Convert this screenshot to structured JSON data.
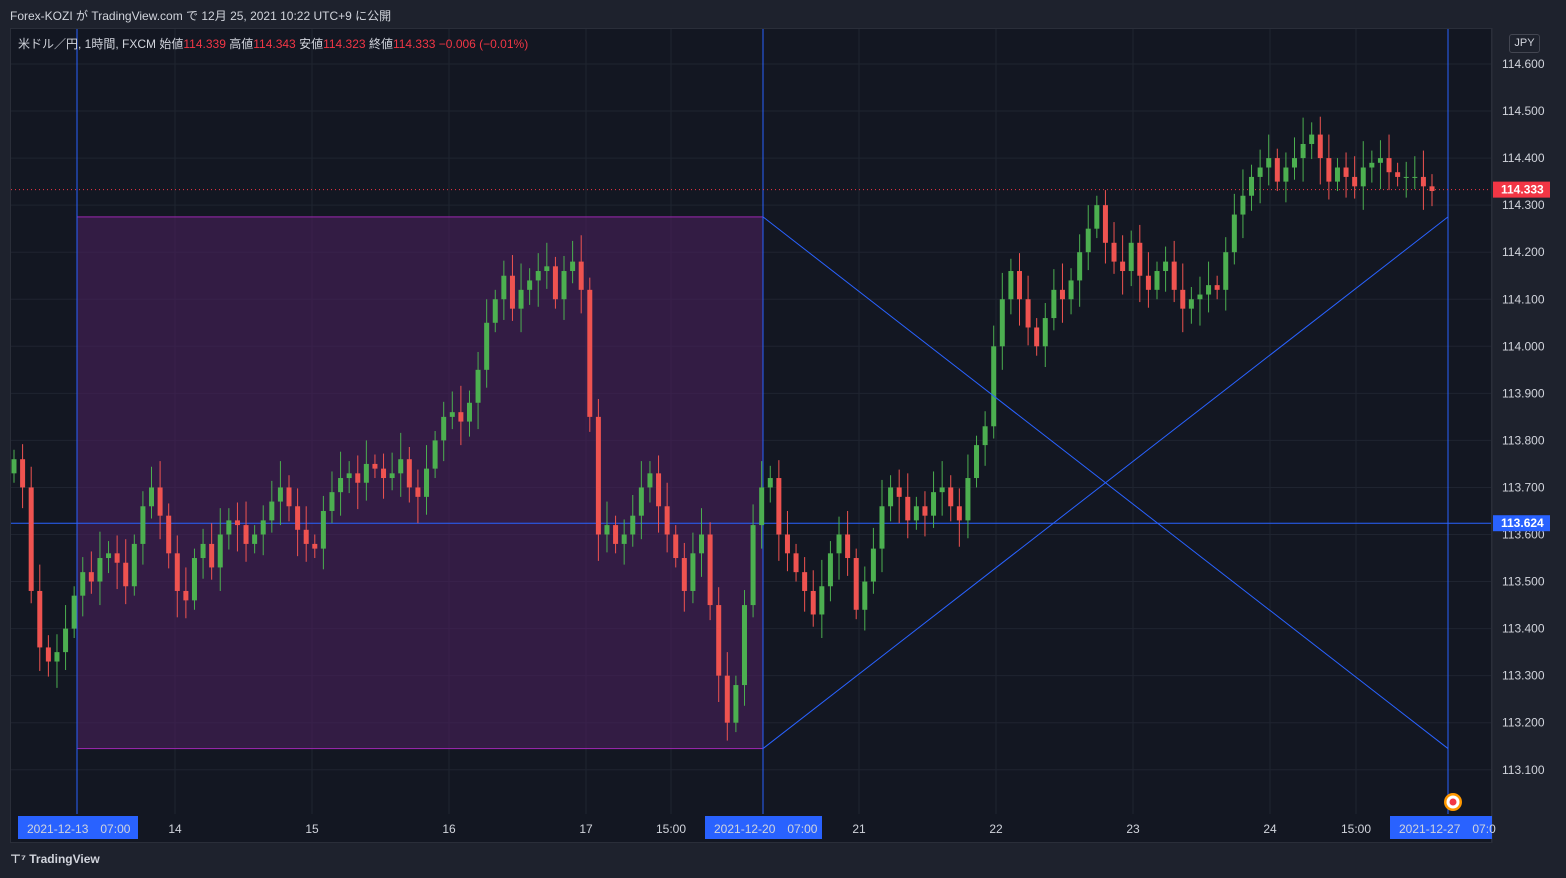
{
  "header": {
    "published_text": "Forex-KOZI が TradingView.com で 12月 25, 2021 10:22 UTC+9 に公開"
  },
  "legend": {
    "symbol": "米ドル／円, 1時間, FXCM",
    "open_label": "始値",
    "open": "114.339",
    "high_label": "高値",
    "high": "114.343",
    "low_label": "安値",
    "low": "114.323",
    "close_label": "終値",
    "close": "114.333",
    "change": "−0.006 (−0.01%)"
  },
  "currency_button": "JPY",
  "footer": {
    "brand": "TradingView"
  },
  "colors": {
    "up": "#26a69a",
    "up_body": "#4caf50",
    "down": "#ef5350",
    "line": "#2962ff",
    "box_fill": "#4a1f5c",
    "box_border": "#9c27b0",
    "last_price": "#f23645",
    "line_price": "#2962ff"
  },
  "chart_data": {
    "type": "candlestick",
    "y_axis": {
      "min": 113.02,
      "max": 114.66,
      "ticks": [
        "114.600",
        "114.500",
        "114.400",
        "114.300",
        "114.200",
        "114.100",
        "114.000",
        "113.900",
        "113.800",
        "113.700",
        "113.600",
        "113.500",
        "113.400",
        "113.300",
        "113.200",
        "113.100"
      ]
    },
    "x_axis": {
      "labels": [
        "14",
        "15",
        "16",
        "17",
        "15:00",
        "21",
        "22",
        "23",
        "24",
        "15:00"
      ],
      "highlighted_labels": [
        "2021-12-13　07:00",
        "2021-12-20　07:00",
        "2021-12-27　07:0"
      ]
    },
    "last_price_label": "114.333",
    "horizontal_line_label": "113.624",
    "horizontal_line_price": 113.624,
    "box": {
      "top_price": 114.275,
      "bottom_price": 113.145,
      "start_label": "2021-12-13　07:00",
      "end_label": "2021-12-20　07:00"
    },
    "cross_lines": [
      {
        "from_price": 114.275,
        "to_price": 113.145
      },
      {
        "from_price": 113.145,
        "to_price": 114.275
      }
    ],
    "closes": [
      113.76,
      113.7,
      113.48,
      113.36,
      113.33,
      113.35,
      113.4,
      113.47,
      113.52,
      113.5,
      113.55,
      113.56,
      113.54,
      113.49,
      113.58,
      113.66,
      113.7,
      113.64,
      113.56,
      113.48,
      113.46,
      113.55,
      113.58,
      113.53,
      113.6,
      113.63,
      113.62,
      113.58,
      113.6,
      113.63,
      113.67,
      113.7,
      113.66,
      113.61,
      113.58,
      113.57,
      113.65,
      113.69,
      113.72,
      113.73,
      113.71,
      113.75,
      113.74,
      113.72,
      113.73,
      113.76,
      113.7,
      113.68,
      113.74,
      113.8,
      113.85,
      113.86,
      113.84,
      113.88,
      113.95,
      114.05,
      114.1,
      114.15,
      114.08,
      114.12,
      114.14,
      114.16,
      114.17,
      114.1,
      114.16,
      114.18,
      114.12,
      113.85,
      113.6,
      113.62,
      113.58,
      113.6,
      113.64,
      113.7,
      113.73,
      113.66,
      113.6,
      113.55,
      113.48,
      113.56,
      113.6,
      113.45,
      113.3,
      113.2,
      113.28,
      113.45,
      113.62,
      113.7,
      113.72,
      113.6,
      113.56,
      113.52,
      113.48,
      113.43,
      113.49,
      113.56,
      113.6,
      113.55,
      113.44,
      113.5,
      113.57,
      113.66,
      113.7,
      113.68,
      113.63,
      113.66,
      113.64,
      113.69,
      113.7,
      113.66,
      113.63,
      113.72,
      113.79,
      113.83,
      114.0,
      114.1,
      114.16,
      114.1,
      114.04,
      114.0,
      114.06,
      114.12,
      114.1,
      114.14,
      114.2,
      114.25,
      114.3,
      114.22,
      114.18,
      114.16,
      114.22,
      114.15,
      114.12,
      114.16,
      114.18,
      114.12,
      114.08,
      114.1,
      114.11,
      114.13,
      114.12,
      114.2,
      114.28,
      114.32,
      114.36,
      114.38,
      114.4,
      114.35,
      114.38,
      114.4,
      114.43,
      114.45,
      114.4,
      114.35,
      114.38,
      114.36,
      114.34,
      114.38,
      114.39,
      114.4,
      114.37,
      114.36,
      114.36,
      114.36,
      114.34,
      114.33
    ]
  }
}
